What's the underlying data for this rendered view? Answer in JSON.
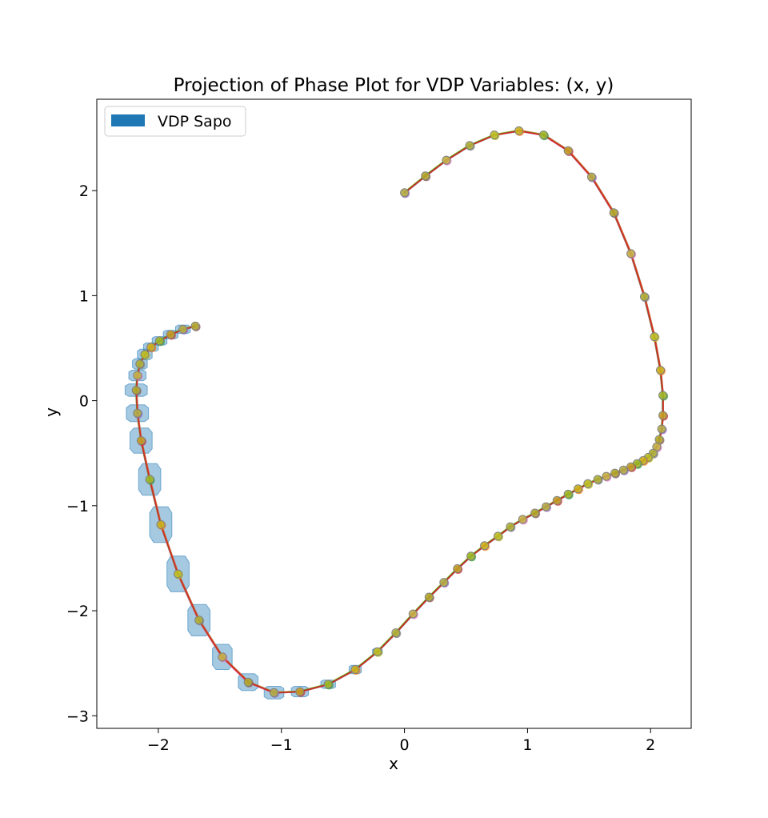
{
  "chart_data": {
    "type": "line",
    "title": "Projection of Phase Plot for VDP Variables: (x, y)",
    "xlabel": "x",
    "ylabel": "y",
    "xlim": [
      -2.5,
      2.33
    ],
    "ylim": [
      -3.12,
      2.87
    ],
    "xticks": [
      -2,
      -1,
      0,
      1,
      2
    ],
    "yticks": [
      -3,
      -2,
      -1,
      0,
      1,
      2
    ],
    "xtick_labels": [
      "−2",
      "−1",
      "0",
      "1",
      "2"
    ],
    "ytick_labels": [
      "−3",
      "−2",
      "−1",
      "0",
      "1",
      "2"
    ],
    "grid": false,
    "legend": {
      "position": "upper-left",
      "entries": [
        {
          "label": "VDP Sapo",
          "color": "#1f77b4"
        }
      ]
    },
    "colors": {
      "sapo_fill": "#1f77b4",
      "trajectory": [
        "#9467bd",
        "#8c564b",
        "#e377c2",
        "#7f7f7f",
        "#bcbd22",
        "#ff7f0e",
        "#2ca02c",
        "#d62728"
      ],
      "dot_outline": "#7f7f7f",
      "dot_fill": "#bcbd22"
    },
    "trajectory": [
      [
        0.0,
        1.98
      ],
      [
        0.17,
        2.14
      ],
      [
        0.34,
        2.29
      ],
      [
        0.53,
        2.43
      ],
      [
        0.73,
        2.53
      ],
      [
        0.93,
        2.57
      ],
      [
        1.13,
        2.53
      ],
      [
        1.33,
        2.38
      ],
      [
        1.52,
        2.13
      ],
      [
        1.7,
        1.79
      ],
      [
        1.84,
        1.4
      ],
      [
        1.95,
        0.99
      ],
      [
        2.03,
        0.61
      ],
      [
        2.08,
        0.29
      ],
      [
        2.1,
        0.05
      ],
      [
        2.1,
        -0.14
      ],
      [
        2.09,
        -0.27
      ],
      [
        2.07,
        -0.37
      ],
      [
        2.05,
        -0.44
      ],
      [
        2.02,
        -0.5
      ],
      [
        1.98,
        -0.54
      ],
      [
        1.94,
        -0.57
      ],
      [
        1.89,
        -0.6
      ],
      [
        1.84,
        -0.63
      ],
      [
        1.78,
        -0.66
      ],
      [
        1.71,
        -0.69
      ],
      [
        1.64,
        -0.72
      ],
      [
        1.57,
        -0.75
      ],
      [
        1.49,
        -0.79
      ],
      [
        1.41,
        -0.84
      ],
      [
        1.33,
        -0.89
      ],
      [
        1.24,
        -0.95
      ],
      [
        1.15,
        -1.01
      ],
      [
        1.06,
        -1.07
      ],
      [
        0.96,
        -1.13
      ],
      [
        0.86,
        -1.2
      ],
      [
        0.76,
        -1.29
      ],
      [
        0.65,
        -1.38
      ],
      [
        0.54,
        -1.48
      ],
      [
        0.43,
        -1.6
      ],
      [
        0.32,
        -1.73
      ],
      [
        0.2,
        -1.87
      ],
      [
        0.07,
        -2.03
      ],
      [
        -0.07,
        -2.21
      ],
      [
        -0.22,
        -2.39
      ],
      [
        -0.4,
        -2.56
      ],
      [
        -0.62,
        -2.7
      ],
      [
        -0.85,
        -2.77
      ],
      [
        -1.06,
        -2.78
      ],
      [
        -1.27,
        -2.68
      ],
      [
        -1.48,
        -2.44
      ],
      [
        -1.67,
        -2.09
      ],
      [
        -1.84,
        -1.65
      ],
      [
        -1.98,
        -1.18
      ],
      [
        -2.07,
        -0.75
      ],
      [
        -2.14,
        -0.38
      ],
      [
        -2.17,
        -0.12
      ],
      [
        -2.18,
        0.1
      ],
      [
        -2.17,
        0.24
      ],
      [
        -2.15,
        0.35
      ],
      [
        -2.11,
        0.44
      ],
      [
        -2.06,
        0.51
      ],
      [
        -1.99,
        0.57
      ],
      [
        -1.9,
        0.63
      ],
      [
        -1.8,
        0.68
      ],
      [
        -1.7,
        0.71
      ]
    ],
    "sapo_boxes": [
      {
        "x": -1.8,
        "y": 0.68,
        "hw": 0.06,
        "hh": 0.04
      },
      {
        "x": -1.9,
        "y": 0.63,
        "hw": 0.06,
        "hh": 0.04
      },
      {
        "x": -1.99,
        "y": 0.57,
        "hw": 0.06,
        "hh": 0.04
      },
      {
        "x": -2.06,
        "y": 0.51,
        "hw": 0.06,
        "hh": 0.04
      },
      {
        "x": -2.11,
        "y": 0.44,
        "hw": 0.06,
        "hh": 0.05
      },
      {
        "x": -2.15,
        "y": 0.35,
        "hw": 0.06,
        "hh": 0.05
      },
      {
        "x": -2.17,
        "y": 0.24,
        "hw": 0.07,
        "hh": 0.05
      },
      {
        "x": -2.18,
        "y": 0.1,
        "hw": 0.09,
        "hh": 0.06
      },
      {
        "x": -2.17,
        "y": -0.12,
        "hw": 0.09,
        "hh": 0.08
      },
      {
        "x": -2.14,
        "y": -0.38,
        "hw": 0.09,
        "hh": 0.12
      },
      {
        "x": -2.07,
        "y": -0.75,
        "hw": 0.09,
        "hh": 0.15
      },
      {
        "x": -1.98,
        "y": -1.18,
        "hw": 0.09,
        "hh": 0.17
      },
      {
        "x": -1.84,
        "y": -1.65,
        "hw": 0.09,
        "hh": 0.17
      },
      {
        "x": -1.67,
        "y": -2.09,
        "hw": 0.09,
        "hh": 0.15
      },
      {
        "x": -1.48,
        "y": -2.44,
        "hw": 0.08,
        "hh": 0.12
      },
      {
        "x": -1.27,
        "y": -2.68,
        "hw": 0.08,
        "hh": 0.08
      },
      {
        "x": -1.06,
        "y": -2.78,
        "hw": 0.08,
        "hh": 0.06
      },
      {
        "x": -0.85,
        "y": -2.77,
        "hw": 0.07,
        "hh": 0.05
      },
      {
        "x": -0.62,
        "y": -2.7,
        "hw": 0.06,
        "hh": 0.04
      },
      {
        "x": -0.4,
        "y": -2.56,
        "hw": 0.05,
        "hh": 0.04
      },
      {
        "x": -0.22,
        "y": -2.39,
        "hw": 0.04,
        "hh": 0.03
      }
    ]
  }
}
